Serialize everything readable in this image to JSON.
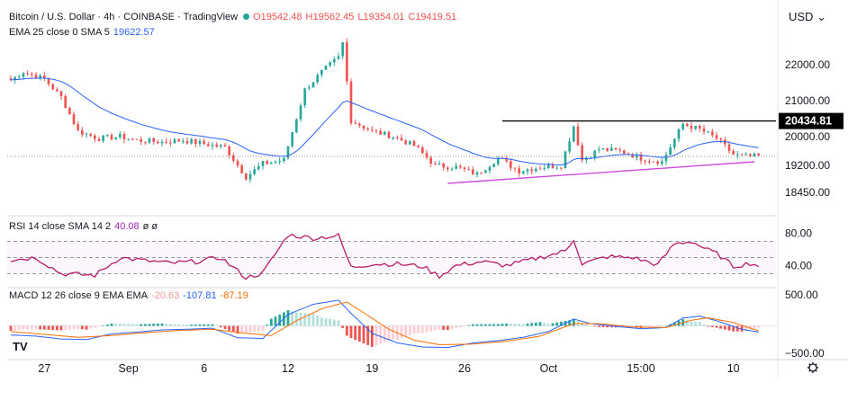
{
  "header": {
    "symbol_desc": "Bitcoin / U.S. Dollar · 4h · COINBASE · TradingView",
    "ohlc": {
      "o": "O19542.48",
      "h": "H19562.45",
      "l": "L19354.01",
      "c": "C19419.51"
    },
    "ema_label": "EMA 25 close 0 SMA 5",
    "ema_value": "19622.57",
    "rsi_label": "RSI 14 close SMA 14 2",
    "rsi_value": "40.08",
    "rsi_extra": "ø ø",
    "macd_label": "MACD 12 26 close 9 EMA EMA",
    "macd_hist": "-20.63",
    "macd_value": "-107.81",
    "macd_signal": "-87.19"
  },
  "price_axis": {
    "currency": "USD",
    "ticks": [
      "22000.00",
      "21000.00",
      "20000.00",
      "19200.00",
      "18450.00"
    ],
    "highlight": "20434.81"
  },
  "rsi_axis": {
    "ticks": [
      "80.00",
      "40.00"
    ]
  },
  "macd_axis": {
    "ticks": [
      "500.00",
      "−500.00"
    ]
  },
  "time_axis": {
    "ticks": [
      "27",
      "Sep",
      "6",
      "12",
      "19",
      "26",
      "Oct",
      "15:00",
      "10"
    ]
  },
  "colors": {
    "up": "#26a69a",
    "down": "#ef5350",
    "ema": "#2962ff",
    "rsi": "#b71c6b",
    "macd": "#2962ff",
    "signal": "#ff6d00",
    "support": "#cc4ddb",
    "resistance": "#000000"
  },
  "chart_data": {
    "type": "candlestick",
    "price_scale": [
      18000,
      22800
    ],
    "price_close_path": [
      [
        0,
        21580
      ],
      [
        3,
        21800
      ],
      [
        8,
        21600
      ],
      [
        12,
        21100
      ],
      [
        16,
        20150
      ],
      [
        21,
        19950
      ],
      [
        26,
        20000
      ],
      [
        30,
        19900
      ],
      [
        36,
        19850
      ],
      [
        41,
        19900
      ],
      [
        46,
        19800
      ],
      [
        51,
        19700
      ],
      [
        56,
        18880
      ],
      [
        60,
        19250
      ],
      [
        65,
        19350
      ],
      [
        70,
        21300
      ],
      [
        74,
        21800
      ],
      [
        78,
        22200
      ],
      [
        79,
        22600
      ],
      [
        81,
        20450
      ],
      [
        86,
        20150
      ],
      [
        91,
        20000
      ],
      [
        96,
        19750
      ],
      [
        101,
        19200
      ],
      [
        106,
        19150
      ],
      [
        111,
        18950
      ],
      [
        116,
        19400
      ],
      [
        121,
        19050
      ],
      [
        126,
        19150
      ],
      [
        131,
        19200
      ],
      [
        134,
        20300
      ],
      [
        136,
        19350
      ],
      [
        140,
        19650
      ],
      [
        145,
        19600
      ],
      [
        150,
        19400
      ],
      [
        155,
        19300
      ],
      [
        160,
        20350
      ],
      [
        164,
        20200
      ],
      [
        168,
        19950
      ],
      [
        172,
        19500
      ],
      [
        175,
        19450
      ]
    ],
    "support_line": {
      "from": [
        104,
        18700
      ],
      "to": [
        177,
        19300
      ]
    },
    "resistance_level": 20434.81,
    "rsi_scale": [
      15,
      95
    ],
    "rsi_ref": [
      70,
      50,
      30
    ],
    "rsi_path": [
      [
        0,
        47
      ],
      [
        6,
        50
      ],
      [
        12,
        30
      ],
      [
        20,
        28
      ],
      [
        26,
        50
      ],
      [
        32,
        46
      ],
      [
        38,
        43
      ],
      [
        44,
        45
      ],
      [
        50,
        50
      ],
      [
        56,
        25
      ],
      [
        60,
        31
      ],
      [
        66,
        78
      ],
      [
        72,
        74
      ],
      [
        78,
        77
      ],
      [
        81,
        38
      ],
      [
        86,
        42
      ],
      [
        92,
        42
      ],
      [
        98,
        39
      ],
      [
        102,
        27
      ],
      [
        106,
        40
      ],
      [
        112,
        45
      ],
      [
        118,
        40
      ],
      [
        126,
        50
      ],
      [
        132,
        58
      ],
      [
        134,
        73
      ],
      [
        136,
        42
      ],
      [
        142,
        51
      ],
      [
        148,
        50
      ],
      [
        154,
        41
      ],
      [
        158,
        67
      ],
      [
        162,
        70
      ],
      [
        166,
        59
      ],
      [
        168,
        55
      ],
      [
        172,
        39
      ],
      [
        176,
        43
      ],
      [
        178,
        40
      ]
    ],
    "macd_scale": [
      -560,
      640
    ],
    "macd_path": [
      [
        0,
        -160
      ],
      [
        6,
        -180
      ],
      [
        12,
        -230
      ],
      [
        18,
        -240
      ],
      [
        24,
        -140
      ],
      [
        30,
        -110
      ],
      [
        36,
        -70
      ],
      [
        42,
        -60
      ],
      [
        48,
        -40
      ],
      [
        54,
        -210
      ],
      [
        60,
        -220
      ],
      [
        66,
        200
      ],
      [
        72,
        380
      ],
      [
        78,
        450
      ],
      [
        81,
        220
      ],
      [
        86,
        -130
      ],
      [
        92,
        -300
      ],
      [
        98,
        -370
      ],
      [
        104,
        -380
      ],
      [
        110,
        -300
      ],
      [
        116,
        -260
      ],
      [
        122,
        -200
      ],
      [
        128,
        -100
      ],
      [
        134,
        120
      ],
      [
        138,
        40
      ],
      [
        144,
        -10
      ],
      [
        150,
        -50
      ],
      [
        156,
        -30
      ],
      [
        160,
        140
      ],
      [
        164,
        170
      ],
      [
        168,
        90
      ],
      [
        174,
        -60
      ],
      [
        178,
        -107.81
      ]
    ],
    "signal_path": [
      [
        0,
        -100
      ],
      [
        8,
        -150
      ],
      [
        16,
        -200
      ],
      [
        24,
        -170
      ],
      [
        32,
        -120
      ],
      [
        40,
        -80
      ],
      [
        48,
        -60
      ],
      [
        56,
        -130
      ],
      [
        62,
        -170
      ],
      [
        68,
        90
      ],
      [
        74,
        300
      ],
      [
        80,
        420
      ],
      [
        84,
        230
      ],
      [
        90,
        -60
      ],
      [
        96,
        -250
      ],
      [
        102,
        -330
      ],
      [
        110,
        -320
      ],
      [
        118,
        -270
      ],
      [
        126,
        -180
      ],
      [
        134,
        40
      ],
      [
        140,
        40
      ],
      [
        148,
        -20
      ],
      [
        156,
        -30
      ],
      [
        162,
        100
      ],
      [
        166,
        140
      ],
      [
        172,
        60
      ],
      [
        178,
        -87.19
      ]
    ]
  }
}
